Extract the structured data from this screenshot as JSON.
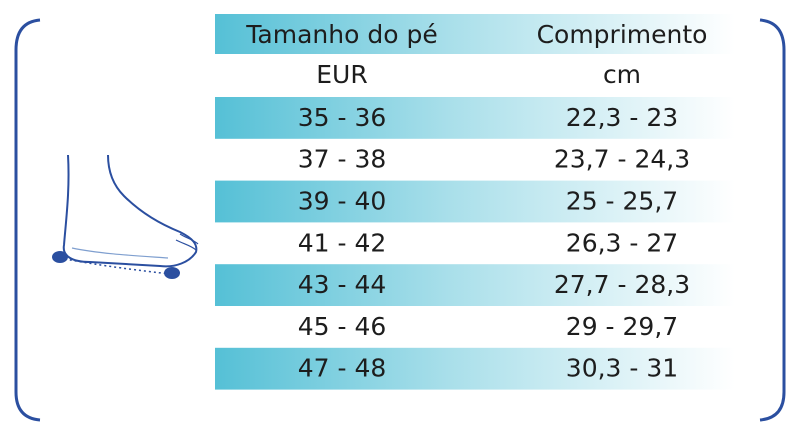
{
  "table": {
    "columns": [
      {
        "title": "Tamanho do pé",
        "unit": "EUR"
      },
      {
        "title": "Comprimento",
        "unit": "cm"
      }
    ],
    "rows": [
      [
        "35 - 36",
        "22,3 - 23"
      ],
      [
        "37 - 38",
        "23,7 - 24,3"
      ],
      [
        "39 - 40",
        "25 - 25,7"
      ],
      [
        "41 - 42",
        "26,3 - 27"
      ],
      [
        "43 - 44",
        "27,7 - 28,3"
      ],
      [
        "45 - 46",
        "29 - 29,7"
      ],
      [
        "47 - 48",
        "30,3 - 31"
      ]
    ]
  }
}
